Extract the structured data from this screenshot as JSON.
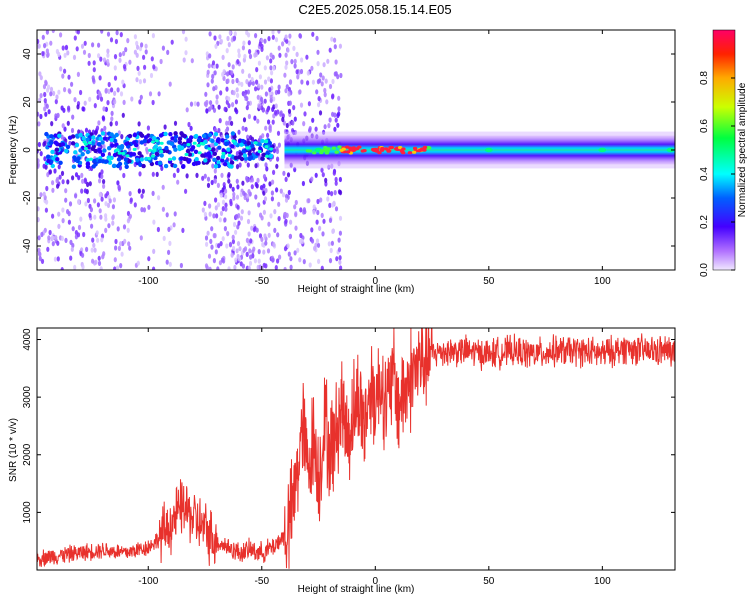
{
  "title": "C2E5.2025.058.15.14.E05",
  "chart_data": [
    {
      "type": "heatmap",
      "title": "C2E5.2025.058.15.14.E05",
      "xlabel": "Height of straight line (km)",
      "ylabel": "Frequency (Hz)",
      "xlim": [
        -149,
        132
      ],
      "ylim": [
        -50,
        50
      ],
      "xticks": [
        -100,
        -50,
        0,
        50,
        100
      ],
      "yticks": [
        -40,
        -20,
        0,
        20,
        40
      ],
      "colorbar": {
        "label": "Normalized spectral amplitude",
        "range": [
          0.0,
          1.0
        ],
        "ticks": [
          0.0,
          0.2,
          0.4,
          0.6,
          0.8
        ],
        "colormap": "rainbow"
      },
      "description_points": [
        {
          "x": -130,
          "y": 0,
          "amplitude": 0.2
        },
        {
          "x": -90,
          "y": 0,
          "amplitude": 0.25
        },
        {
          "x": -50,
          "y": 0,
          "amplitude": 0.15
        },
        {
          "x": -25,
          "y": 0,
          "amplitude": 0.4
        },
        {
          "x": -10,
          "y": 0,
          "amplitude": 0.85
        },
        {
          "x": 0,
          "y": 0,
          "amplitude": 0.9
        },
        {
          "x": 10,
          "y": 0.5,
          "amplitude": 0.95
        },
        {
          "x": 20,
          "y": 0,
          "amplitude": 0.8
        },
        {
          "x": 50,
          "y": 0,
          "amplitude": 0.55
        },
        {
          "x": 100,
          "y": 0,
          "amplitude": 0.55
        },
        {
          "x": 130,
          "y": 0,
          "amplitude": 0.5
        }
      ]
    },
    {
      "type": "line",
      "xlabel": "Height of straight line (km)",
      "ylabel": "SNR (10 * v/v)",
      "xlim": [
        -149,
        132
      ],
      "ylim": [
        0,
        4200
      ],
      "xticks": [
        -100,
        -50,
        0,
        50,
        100
      ],
      "yticks": [
        1000,
        2000,
        3000,
        4000
      ],
      "color": "#e8312c",
      "x": [
        -149,
        -140,
        -130,
        -120,
        -110,
        -100,
        -95,
        -90,
        -85,
        -80,
        -75,
        -70,
        -65,
        -60,
        -55,
        -50,
        -45,
        -40,
        -37,
        -35,
        -32,
        -30,
        -27,
        -25,
        -22,
        -20,
        -17,
        -15,
        -12,
        -10,
        -7,
        -5,
        -2,
        0,
        3,
        5,
        8,
        10,
        13,
        15,
        18,
        20,
        23,
        25,
        30,
        40,
        50,
        60,
        70,
        80,
        90,
        100,
        110,
        120,
        132
      ],
      "y": [
        200,
        250,
        300,
        350,
        300,
        400,
        550,
        800,
        1100,
        900,
        700,
        500,
        400,
        300,
        350,
        300,
        400,
        600,
        900,
        1500,
        2500,
        1800,
        2300,
        1600,
        2600,
        2000,
        2400,
        2900,
        2300,
        2700,
        3000,
        2500,
        3200,
        3000,
        3300,
        2800,
        3400,
        2900,
        3100,
        3300,
        3500,
        3600,
        3700,
        3750,
        3800,
        3800,
        3750,
        3800,
        3750,
        3800,
        3800,
        3750,
        3850,
        3800,
        3800
      ]
    }
  ]
}
